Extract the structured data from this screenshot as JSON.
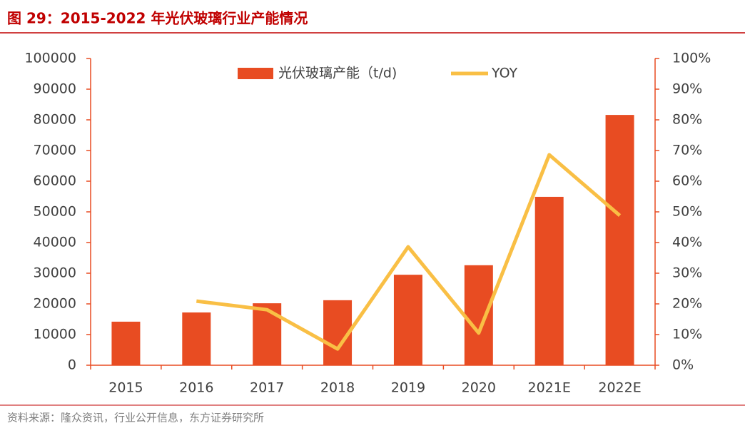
{
  "chart_data": {
    "type": "bar-line",
    "title": "图 29：2015-2022 年光伏玻璃行业产能情况",
    "source": "资料来源：隆众资讯，行业公开信息，东方证券研究所",
    "categories": [
      "2015",
      "2016",
      "2017",
      "2018",
      "2019",
      "2020",
      "2021E",
      "2022E"
    ],
    "series": [
      {
        "name": "光伏玻璃产能（t/d)",
        "type": "bar",
        "color": "#e84c22",
        "values": [
          14200,
          17200,
          20200,
          21200,
          29500,
          32600,
          54900,
          81600
        ]
      },
      {
        "name": "YOY",
        "type": "line",
        "axis": "y2",
        "color": "#f9bf45",
        "values": [
          null,
          20.9,
          18.1,
          5.3,
          38.6,
          10.5,
          68.6,
          48.8
        ]
      }
    ],
    "ylim": [
      0,
      100000
    ],
    "yticks": [
      0,
      10000,
      20000,
      30000,
      40000,
      50000,
      60000,
      70000,
      80000,
      90000,
      100000
    ],
    "y2lim": [
      0,
      100
    ],
    "y2ticks": [
      {
        "value": 0,
        "label": "0%"
      },
      {
        "value": 10,
        "label": "10%"
      },
      {
        "value": 20,
        "label": "20%"
      },
      {
        "value": 30,
        "label": "30%"
      },
      {
        "value": 40,
        "label": "40%"
      },
      {
        "value": 50,
        "label": "50%"
      },
      {
        "value": 60,
        "label": "60%"
      },
      {
        "value": 70,
        "label": "70%"
      },
      {
        "value": 80,
        "label": "80%"
      },
      {
        "value": 90,
        "label": "90%"
      },
      {
        "value": 100,
        "label": "100%"
      }
    ],
    "legend": "top"
  }
}
